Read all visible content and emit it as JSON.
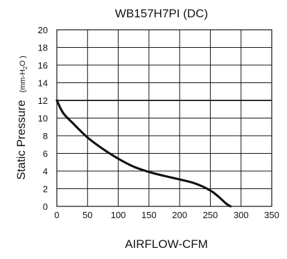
{
  "chart_data": {
    "type": "line",
    "title": "WB157H7PI  (DC)",
    "xlabel": "AIRFLOW-CFM",
    "ylabel": "Static  Pressure",
    "ylabel_unit_prefix": "(mm-H",
    "ylabel_unit_sub": "2",
    "ylabel_unit_suffix": "O )",
    "xlim": [
      0,
      350
    ],
    "ylim": [
      0,
      20
    ],
    "x_ticks": [
      0,
      50,
      100,
      150,
      200,
      250,
      300,
      350
    ],
    "y_ticks": [
      0,
      2,
      4,
      6,
      8,
      10,
      12,
      14,
      16,
      18,
      20
    ],
    "grid": true,
    "series": [
      {
        "x": [
          0,
          10,
          25,
          50,
          75,
          100,
          125,
          150,
          175,
          200,
          225,
          250,
          265,
          275,
          283
        ],
        "y": [
          12,
          10.6,
          9.5,
          7.8,
          6.5,
          5.4,
          4.5,
          3.9,
          3.45,
          3.05,
          2.6,
          1.8,
          1.0,
          0.35,
          0
        ]
      }
    ]
  }
}
